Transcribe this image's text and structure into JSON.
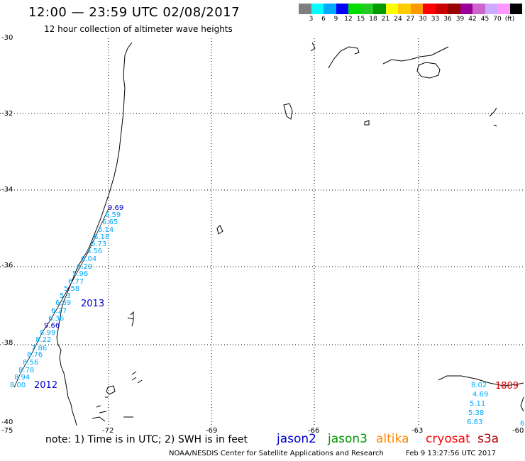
{
  "header": {
    "title": "12:00 — 23:59 UTC 02/08/2017",
    "subtitle": "12 hour collection of altimeter wave heights"
  },
  "colorbar": {
    "colors": [
      "#7f7f7f",
      "#00ffff",
      "#00aaff",
      "#0000ff",
      "#00dd00",
      "#22cc22",
      "#009900",
      "#ffff00",
      "#ffcc00",
      "#ff9900",
      "#ff0000",
      "#cc0000",
      "#990000",
      "#990099",
      "#cc66cc",
      "#ccaaff",
      "#ff99ff",
      "#000000"
    ],
    "labels": [
      "3",
      "6",
      "9",
      "12",
      "15",
      "18",
      "21",
      "24",
      "27",
      "30",
      "33",
      "36",
      "39",
      "42",
      "45",
      "70",
      "(ft)"
    ]
  },
  "axes": {
    "y_labels": [
      "-30",
      "-32",
      "-34",
      "-36",
      "-38",
      "-40"
    ],
    "x_labels": [
      "-75",
      "-72",
      "-69",
      "-66",
      "-63",
      "-60"
    ]
  },
  "tracks": {
    "track_a_label": "2013",
    "track_b_label": "2012",
    "track_c_label": "1809",
    "track_a_values": [
      "9.69",
      "6.59",
      "6.65",
      "6.14",
      "6.18",
      "6.73",
      "6.56",
      "6.04",
      "6.29",
      "5.96",
      "6.77",
      "5.58",
      "5.3",
      "6.69",
      "6.27",
      "6.36",
      "9.66"
    ],
    "track_b_values": [
      "8.99",
      "8.22",
      "7.86",
      "8.76",
      "8.56",
      "8.78",
      "8.94",
      "8.00"
    ],
    "track_c_values": [
      "8.02",
      "4.69",
      "5.11",
      "5.38",
      "6.83",
      "6"
    ]
  },
  "colors": {
    "jason2": "#0000cc",
    "jason3": "#009900",
    "altika": "#ff8800",
    "cryosat": "#ff0000",
    "s3a": "#aa0000",
    "swh_value": "#00aaff",
    "track_label": "#0000cc",
    "track_c_label": "#dd0000"
  },
  "footer": {
    "note": "note: 1) Time is in UTC; 2) SWH is in feet",
    "satellites": [
      "jason2",
      "jason3",
      "altika",
      "cryosat",
      "s3a"
    ],
    "credit": "NOAA/NESDIS Center for Satellite Applications and Research",
    "timestamp": "Feb  9 13:27:56 UTC 2017"
  }
}
